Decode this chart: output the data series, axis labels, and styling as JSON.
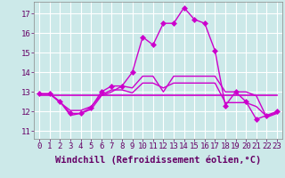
{
  "title": "",
  "xlabel": "Windchill (Refroidissement éolien,°C)",
  "background_color": "#cce9e9",
  "grid_color": "#aadddd",
  "line_color": "#cc00cc",
  "x_ticks": [
    0,
    1,
    2,
    3,
    4,
    5,
    6,
    7,
    8,
    9,
    10,
    11,
    12,
    13,
    14,
    15,
    16,
    17,
    18,
    19,
    20,
    21,
    22,
    23
  ],
  "y_ticks": [
    11,
    12,
    13,
    14,
    15,
    16,
    17
  ],
  "ylim": [
    10.6,
    17.6
  ],
  "xlim": [
    -0.5,
    23.5
  ],
  "series": [
    {
      "y": [
        12.9,
        12.9,
        12.5,
        11.8,
        11.9,
        12.1,
        12.8,
        13.0,
        13.3,
        13.2,
        13.8,
        13.8,
        13.0,
        13.8,
        13.8,
        13.8,
        13.8,
        13.8,
        13.0,
        13.0,
        13.0,
        12.8,
        11.7,
        11.9
      ],
      "marker": false,
      "lw": 1.0
    },
    {
      "y": [
        12.9,
        12.9,
        12.5,
        11.9,
        11.9,
        12.2,
        13.0,
        13.3,
        13.3,
        14.0,
        15.8,
        15.4,
        16.5,
        16.5,
        17.3,
        16.7,
        16.5,
        15.1,
        12.3,
        13.0,
        12.5,
        11.6,
        11.8,
        12.0
      ],
      "marker": true,
      "lw": 1.0
    },
    {
      "y": [
        12.85,
        12.85,
        12.85,
        12.85,
        12.85,
        12.85,
        12.85,
        12.85,
        12.85,
        12.85,
        12.85,
        12.85,
        12.85,
        12.85,
        12.85,
        12.85,
        12.85,
        12.85,
        12.85,
        12.85,
        12.85,
        12.85,
        12.85,
        12.85
      ],
      "marker": false,
      "lw": 1.2
    },
    {
      "y": [
        12.9,
        12.9,
        12.45,
        12.05,
        12.05,
        12.25,
        12.85,
        13.1,
        13.1,
        12.95,
        13.45,
        13.45,
        13.2,
        13.45,
        13.45,
        13.45,
        13.45,
        13.45,
        12.45,
        12.45,
        12.45,
        12.25,
        11.75,
        11.95
      ],
      "marker": false,
      "lw": 1.0
    }
  ],
  "font_color": "#660066",
  "tick_fontsize": 6.5,
  "label_fontsize": 7.5,
  "marker_size": 3.0
}
